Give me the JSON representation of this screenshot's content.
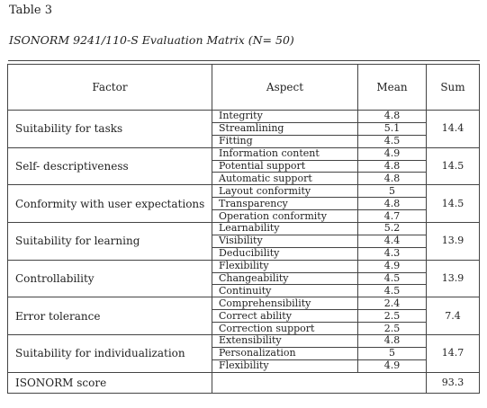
{
  "table_label": "Table 3",
  "caption": "ISONORM 9241/110-S Evaluation Matrix (N= 50)",
  "headers": {
    "factor": "Factor",
    "aspect": "Aspect",
    "mean": "Mean",
    "sum": "Sum"
  },
  "groups": [
    {
      "factor": "Suitability for tasks",
      "sum": "14.4",
      "rows": [
        {
          "aspect": "Integrity",
          "mean": "4.8"
        },
        {
          "aspect": "Streamlining",
          "mean": "5.1"
        },
        {
          "aspect": "Fitting",
          "mean": "4.5"
        }
      ]
    },
    {
      "factor": "Self- descriptiveness",
      "sum": "14.5",
      "rows": [
        {
          "aspect": "Information content",
          "mean": "4.9"
        },
        {
          "aspect": "Potential support",
          "mean": "4.8"
        },
        {
          "aspect": "Automatic support",
          "mean": "4.8"
        }
      ]
    },
    {
      "factor": "Conformity with user expectations",
      "sum": "14.5",
      "rows": [
        {
          "aspect": "Layout conformity",
          "mean": "5"
        },
        {
          "aspect": "Transparency",
          "mean": "4.8"
        },
        {
          "aspect": "Operation conformity",
          "mean": "4.7"
        }
      ]
    },
    {
      "factor": "Suitability for learning",
      "sum": "13.9",
      "rows": [
        {
          "aspect": "Learnability",
          "mean": "5.2"
        },
        {
          "aspect": "Visibility",
          "mean": "4.4"
        },
        {
          "aspect": "Deducibility",
          "mean": "4.3"
        }
      ]
    },
    {
      "factor": "Controllability",
      "sum": "13.9",
      "rows": [
        {
          "aspect": "Flexibility",
          "mean": "4.9"
        },
        {
          "aspect": "Changeability",
          "mean": "4.5"
        },
        {
          "aspect": "Continuity",
          "mean": "4.5"
        }
      ]
    },
    {
      "factor": "Error tolerance",
      "sum": "7.4",
      "rows": [
        {
          "aspect": "Comprehensibility",
          "mean": "2.4"
        },
        {
          "aspect": "Correct ability",
          "mean": "2.5"
        },
        {
          "aspect": "Correction support",
          "mean": "2.5"
        }
      ]
    },
    {
      "factor": "Suitability for individualization",
      "sum": "14.7",
      "rows": [
        {
          "aspect": "Extensibility",
          "mean": "4.8"
        },
        {
          "aspect": "Personalization",
          "mean": "5"
        },
        {
          "aspect": "Flexibility",
          "mean": "4.9"
        }
      ]
    }
  ],
  "score": {
    "label": "ISONORM score",
    "value": "93.3"
  }
}
